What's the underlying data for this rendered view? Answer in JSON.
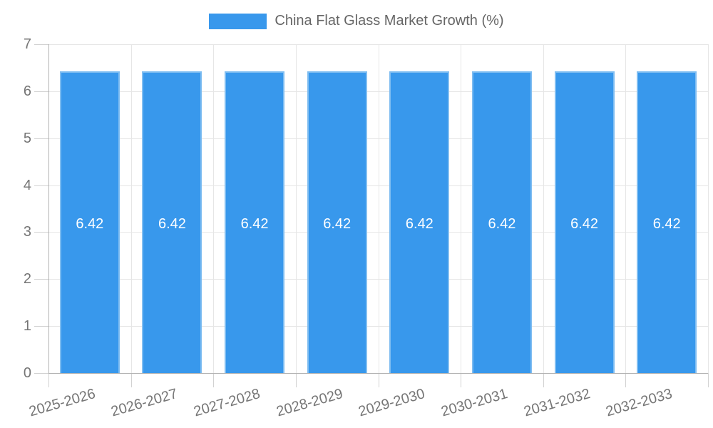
{
  "chart_data": {
    "type": "bar",
    "title": "China Flat Glass Market Growth (%)",
    "legend_position": "top",
    "legend": [
      {
        "label": "China Flat Glass Market Growth (%)",
        "color": "#3898EC"
      }
    ],
    "categories": [
      "2025-2026",
      "2026-2027",
      "2027-2028",
      "2028-2029",
      "2029-2030",
      "2030-2031",
      "2031-2032",
      "2032-2033"
    ],
    "series": [
      {
        "name": "China Flat Glass Market Growth (%)",
        "values": [
          6.42,
          6.42,
          6.42,
          6.42,
          6.42,
          6.42,
          6.42,
          6.42
        ],
        "data_labels": [
          "6.42",
          "6.42",
          "6.42",
          "6.42",
          "6.42",
          "6.42",
          "6.42",
          "6.42"
        ]
      }
    ],
    "xlabel": "",
    "ylabel": "",
    "ylim": [
      0,
      7
    ],
    "yticks": [
      0,
      1,
      2,
      3,
      4,
      5,
      6,
      7
    ],
    "grid": true,
    "style": {
      "bar_fill": "#3898EC",
      "bar_edge": "#7FBDF1",
      "data_label_color": "#ffffff",
      "gridline_color": "#E6E6E6",
      "axis_line_color": "#B3B3B3",
      "tick_mark_color": "#D2D2D2",
      "tick_text_color": "#757575",
      "legend_text_color": "#666666",
      "background": "#ffffff"
    }
  }
}
